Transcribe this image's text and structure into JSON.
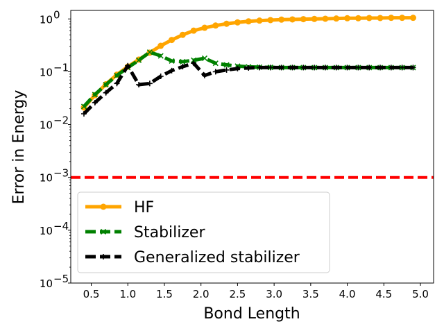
{
  "chart_data": {
    "type": "line",
    "title": "",
    "xlabel": "Bond Length",
    "ylabel": "Error in Energy",
    "xlim": [
      0.22,
      5.18
    ],
    "ylim": [
      1e-05,
      1.45
    ],
    "yscale": "log",
    "x_ticks": [
      0.5,
      1.0,
      1.5,
      2.0,
      2.5,
      3.0,
      3.5,
      4.0,
      4.5,
      5.0
    ],
    "x_tick_labels": [
      "0.5",
      "1.0",
      "1.5",
      "2.0",
      "2.5",
      "3.0",
      "3.5",
      "4.0",
      "4.5",
      "5.0"
    ],
    "y_ticks": [
      {
        "value": 1,
        "base": "10",
        "exp": "0"
      },
      {
        "value": 0.1,
        "base": "10",
        "exp": "−1"
      },
      {
        "value": 0.01,
        "base": "10",
        "exp": "−2"
      },
      {
        "value": 0.001,
        "base": "10",
        "exp": "−3"
      },
      {
        "value": 0.0001,
        "base": "10",
        "exp": "−4"
      },
      {
        "value": 1e-05,
        "base": "10",
        "exp": "−5"
      }
    ],
    "legend_position": "lower-left",
    "x": [
      0.4,
      0.55,
      0.7,
      0.85,
      1.0,
      1.15,
      1.3,
      1.45,
      1.6,
      1.75,
      1.9,
      2.05,
      2.2,
      2.35,
      2.5,
      2.65,
      2.8,
      2.95,
      3.1,
      3.25,
      3.4,
      3.55,
      3.7,
      3.85,
      4.0,
      4.15,
      4.3,
      4.45,
      4.6,
      4.75,
      4.9
    ],
    "series": [
      {
        "name": "HF",
        "color": "#ffa500",
        "style": "solid",
        "marker": "circle",
        "values": [
          0.021,
          0.036,
          0.058,
          0.088,
          0.125,
          0.17,
          0.23,
          0.31,
          0.4,
          0.5,
          0.6,
          0.68,
          0.75,
          0.81,
          0.86,
          0.9,
          0.93,
          0.95,
          0.97,
          0.98,
          0.99,
          1.0,
          1.01,
          1.02,
          1.03,
          1.03,
          1.04,
          1.04,
          1.05,
          1.05,
          1.05
        ]
      },
      {
        "name": "Stabilizer",
        "color": "#008000",
        "style": "dashed",
        "marker": "x",
        "values": [
          0.022,
          0.037,
          0.057,
          0.085,
          0.12,
          0.165,
          0.235,
          0.2,
          0.16,
          0.155,
          0.165,
          0.18,
          0.145,
          0.135,
          0.128,
          0.124,
          0.122,
          0.121,
          0.12,
          0.12,
          0.12,
          0.12,
          0.12,
          0.12,
          0.12,
          0.12,
          0.12,
          0.12,
          0.12,
          0.12,
          0.12
        ]
      },
      {
        "name": "Generalized stabilizer",
        "color": "#000000",
        "style": "dashed",
        "marker": "plus",
        "values": [
          0.016,
          0.026,
          0.04,
          0.06,
          0.13,
          0.057,
          0.06,
          0.082,
          0.105,
          0.125,
          0.145,
          0.085,
          0.1,
          0.108,
          0.115,
          0.118,
          0.12,
          0.12,
          0.12,
          0.12,
          0.12,
          0.12,
          0.12,
          0.12,
          0.12,
          0.12,
          0.12,
          0.12,
          0.12,
          0.12,
          0.12
        ]
      }
    ],
    "reference_line": {
      "y": 0.001,
      "color": "#ff0000",
      "style": "dashed"
    }
  }
}
